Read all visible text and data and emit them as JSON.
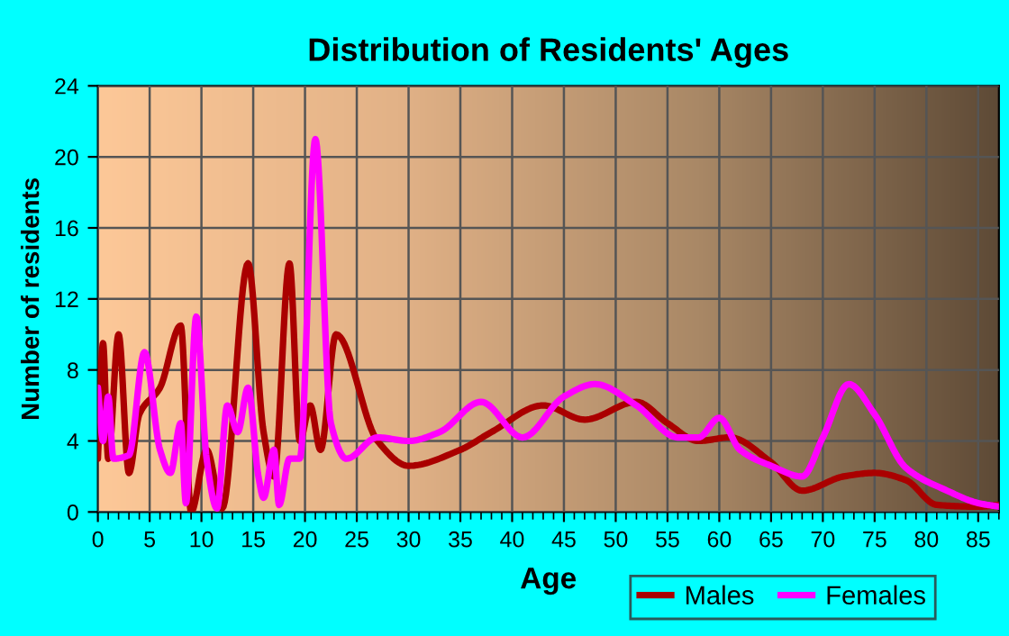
{
  "chart_data": {
    "type": "line",
    "title": "Distribution of Residents' Ages",
    "xlabel": "Age",
    "ylabel": "Number of residents",
    "series": [
      {
        "name": "Males",
        "color": "#aa0000",
        "x": [
          0,
          0.5,
          1,
          2,
          3,
          4,
          6,
          8,
          9,
          10.5,
          12,
          14.5,
          16,
          17,
          18.5,
          19.5,
          20.5,
          21.5,
          23,
          27,
          30,
          35,
          38,
          43,
          47,
          52,
          55,
          58,
          61,
          65,
          68,
          72,
          75,
          78,
          81,
          85,
          87
        ],
        "values": [
          3,
          9.5,
          3,
          10,
          2.2,
          5.5,
          7,
          10.5,
          0,
          3.5,
          0.2,
          14,
          4.5,
          2,
          14,
          4,
          6,
          3.5,
          10,
          4,
          2.6,
          3.5,
          4.5,
          6,
          5.2,
          6.2,
          5,
          4,
          4.2,
          2.8,
          1.2,
          2,
          2.2,
          1.8,
          0.4,
          0.3,
          0.4
        ]
      },
      {
        "name": "Females",
        "color": "#ff00ff",
        "x": [
          0,
          0.5,
          1,
          1.5,
          3,
          4.5,
          6,
          7,
          8,
          8.5,
          9.5,
          10.5,
          11.5,
          12.5,
          13.5,
          14.5,
          15.5,
          16,
          17,
          17.5,
          18.5,
          19.5,
          21,
          22.5,
          24,
          27,
          30,
          33,
          37,
          41,
          45,
          48,
          52,
          56,
          58,
          60,
          62,
          65,
          68,
          70,
          72.5,
          75,
          78,
          82,
          85,
          87
        ],
        "values": [
          7,
          4,
          6.5,
          3,
          3.2,
          9,
          3.5,
          2.2,
          5,
          0.5,
          11,
          3,
          0.2,
          6,
          4.5,
          7,
          2,
          0.8,
          3.5,
          0.4,
          3,
          3,
          21,
          5,
          3,
          4.2,
          4,
          4.5,
          6.2,
          4.2,
          6.5,
          7.2,
          6,
          4.2,
          4.2,
          5.3,
          3.5,
          2.6,
          2,
          4.2,
          7.2,
          5.5,
          2.5,
          1.2,
          0.5,
          0.3
        ]
      }
    ],
    "xlim": [
      0,
      87
    ],
    "xticks": [
      0,
      5,
      10,
      15,
      20,
      25,
      30,
      35,
      40,
      45,
      50,
      55,
      60,
      65,
      70,
      75,
      80,
      85
    ],
    "ylim": [
      0,
      24
    ],
    "yticks": [
      0,
      4,
      8,
      12,
      16,
      20,
      24
    ],
    "grid": true,
    "legend": "bottom right",
    "marker": "none",
    "line_style": "solid"
  }
}
